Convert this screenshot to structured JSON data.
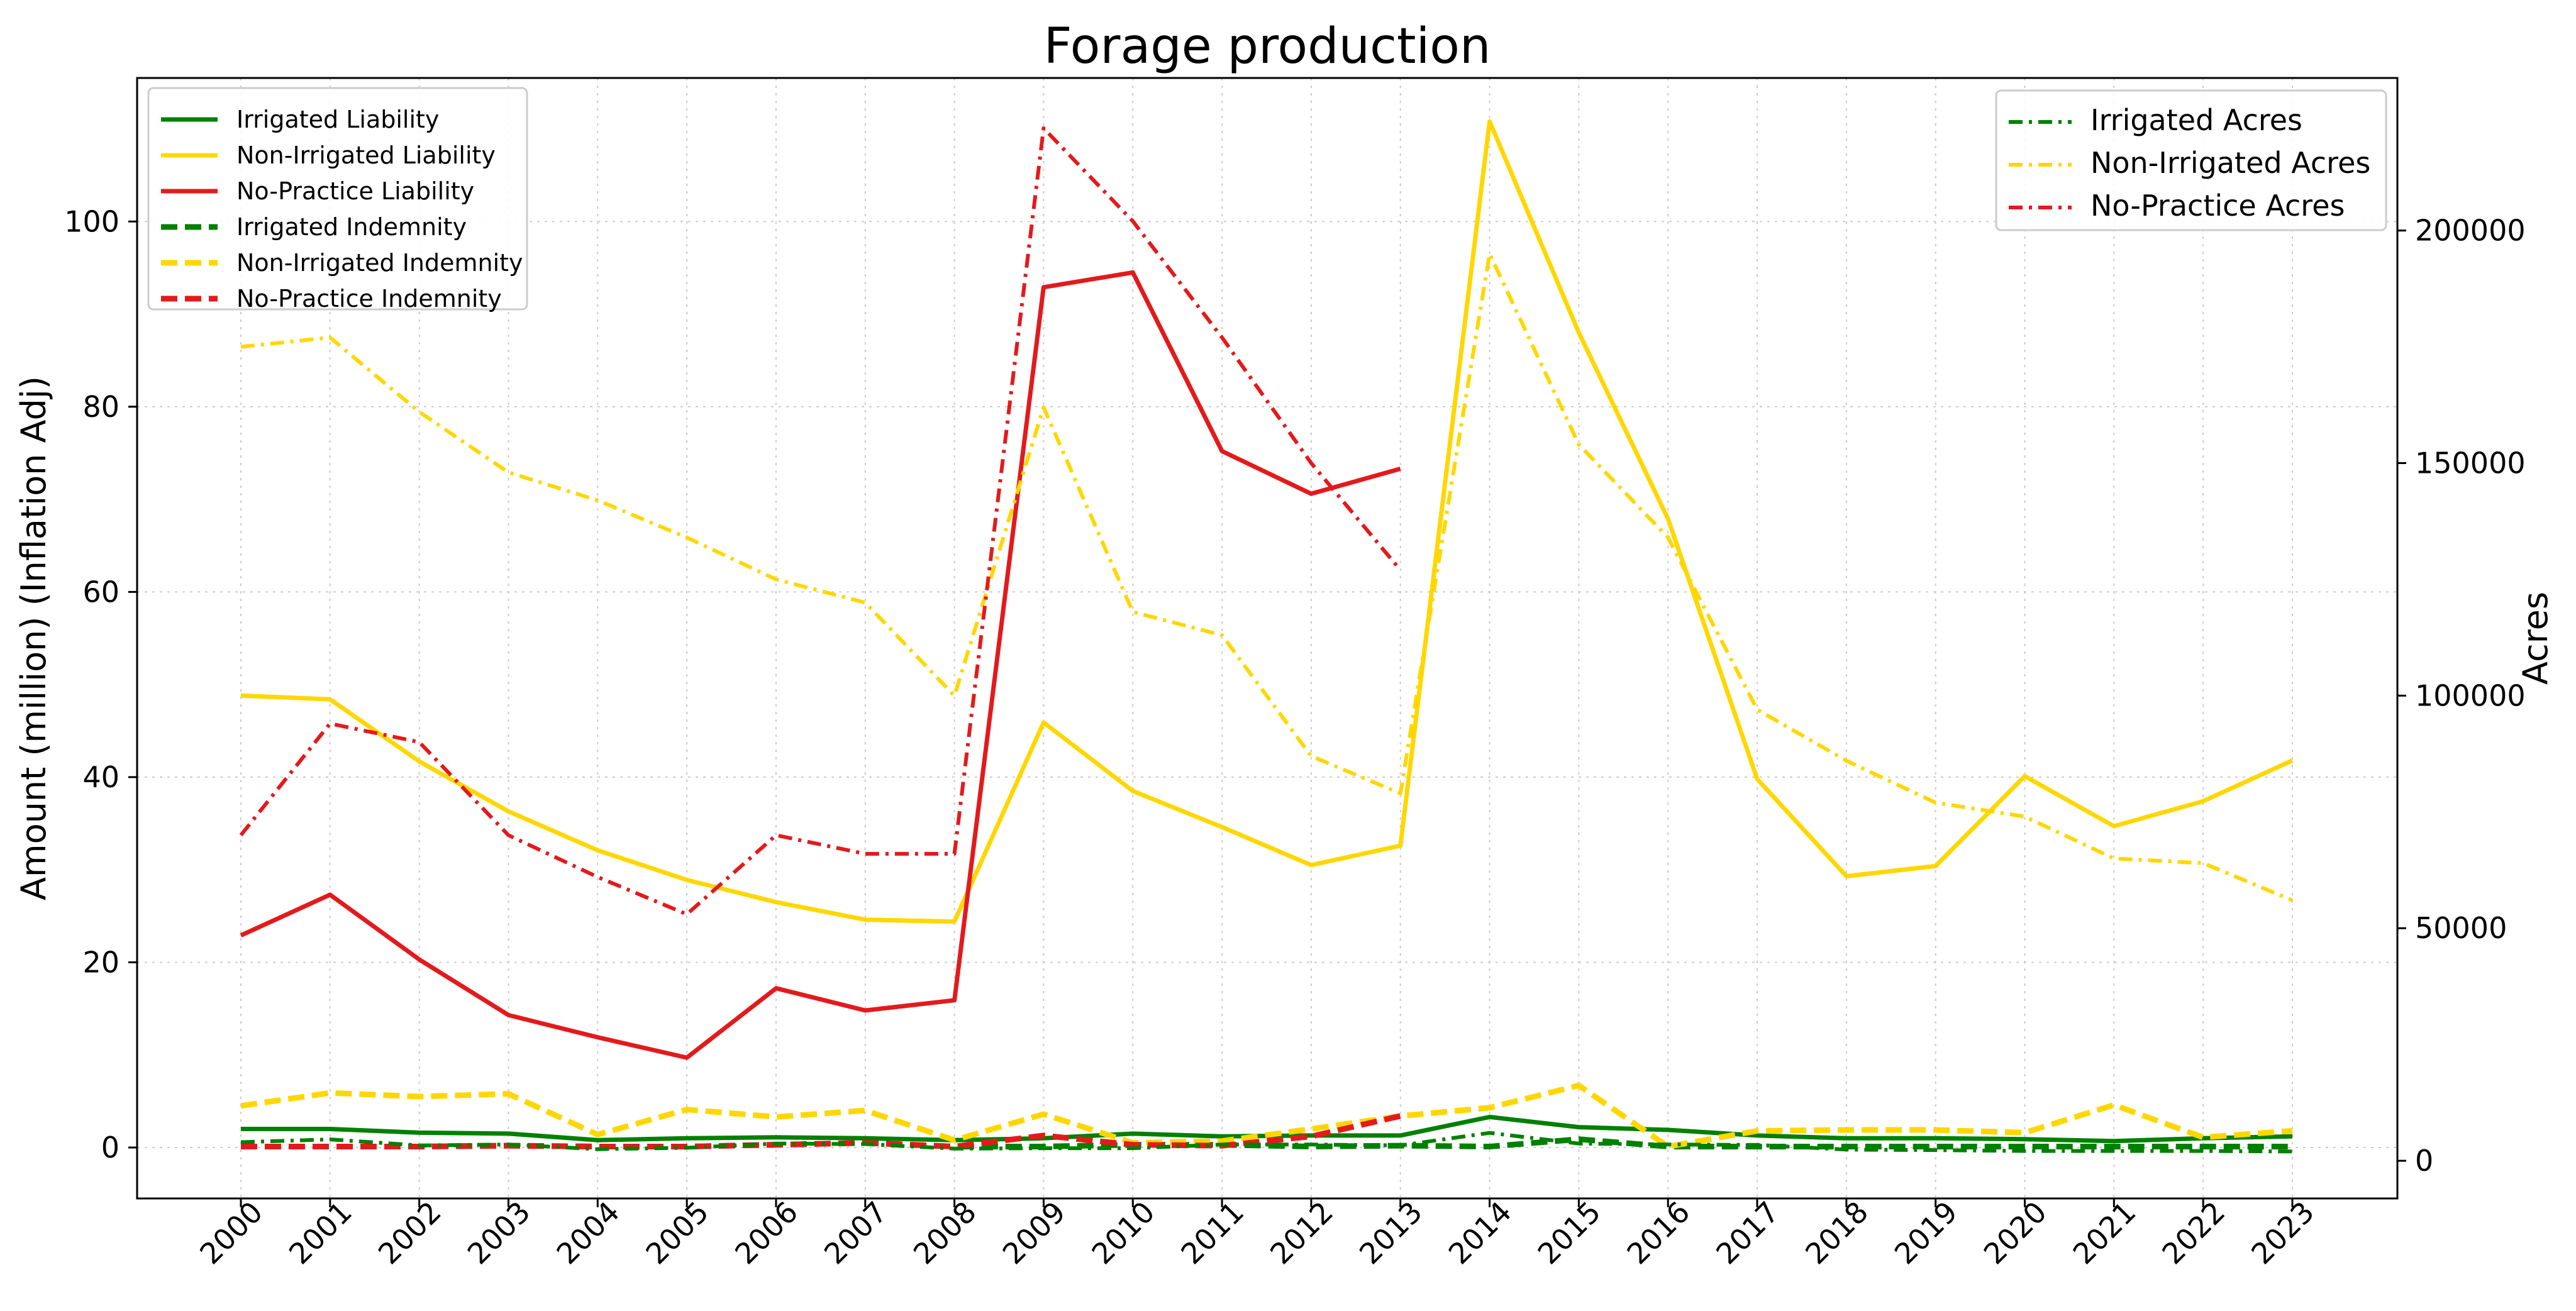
{
  "chart_data": {
    "type": "line",
    "title": "Forage production",
    "xlabel": "",
    "ylabel": "Amount (million) (Inflation Adj)",
    "y2label": "Acres",
    "categories": [
      "2000",
      "2001",
      "2002",
      "2003",
      "2004",
      "2005",
      "2006",
      "2007",
      "2008",
      "2009",
      "2010",
      "2011",
      "2012",
      "2013",
      "2014",
      "2015",
      "2016",
      "2017",
      "2018",
      "2019",
      "2020",
      "2021",
      "2022",
      "2023"
    ],
    "ylim": [
      -5.5,
      115.5
    ],
    "y2lim": [
      -8100,
      232800
    ],
    "yticks": [
      0,
      20,
      40,
      60,
      80,
      100
    ],
    "y2ticks": [
      0,
      50000,
      100000,
      150000,
      200000
    ],
    "grid": true,
    "legend_left_placement": "top-left",
    "legend_right_placement": "top-right",
    "series": [
      {
        "name": "Irrigated Liability",
        "axis": "left",
        "style": "solid",
        "color": "#008000",
        "values": [
          2.0,
          2.0,
          1.6,
          1.5,
          0.8,
          1.0,
          1.1,
          1.0,
          0.8,
          1.0,
          1.5,
          1.2,
          1.3,
          1.3,
          3.3,
          2.2,
          1.9,
          1.3,
          1.0,
          1.0,
          0.9,
          0.7,
          1.0,
          1.2
        ]
      },
      {
        "name": "Non-Irrigated Liability",
        "axis": "left",
        "style": "solid",
        "color": "#FFD700",
        "values": [
          48.8,
          48.4,
          41.7,
          36.3,
          32.1,
          28.9,
          26.5,
          24.6,
          24.4,
          45.9,
          38.5,
          34.6,
          30.5,
          32.6,
          110.8,
          88.0,
          67.9,
          39.8,
          29.3,
          30.4,
          40.1,
          34.7,
          37.4,
          41.8
        ]
      },
      {
        "name": "No-Practice Liability",
        "axis": "left",
        "style": "solid",
        "color": "#E31A1C",
        "values": [
          22.9,
          27.3,
          20.3,
          14.3,
          11.9,
          9.7,
          17.2,
          14.8,
          15.9,
          92.9,
          94.5,
          75.2,
          70.6,
          73.3,
          null,
          null,
          null,
          null,
          null,
          null,
          null,
          null,
          null,
          null
        ]
      },
      {
        "name": "Irrigated Indemnity",
        "axis": "left",
        "style": "dashed",
        "color": "#008000",
        "values": [
          0.1,
          0.1,
          0.1,
          0.2,
          0.1,
          0.1,
          0.3,
          0.5,
          0.1,
          0.1,
          0.3,
          0.3,
          0.1,
          0.2,
          0.1,
          0.9,
          0.1,
          0.1,
          0.1,
          0.1,
          0.1,
          0.1,
          0.1,
          0.1
        ]
      },
      {
        "name": "Non-Irrigated Indemnity",
        "axis": "left",
        "style": "dashed",
        "color": "#FFD700",
        "values": [
          4.5,
          5.9,
          5.5,
          5.8,
          1.4,
          4.1,
          3.3,
          4.0,
          0.8,
          3.6,
          0.5,
          0.7,
          2.0,
          3.4,
          4.3,
          6.7,
          0.1,
          1.8,
          1.9,
          1.9,
          1.6,
          4.6,
          1.1,
          1.8
        ]
      },
      {
        "name": "No-Practice Indemnity",
        "axis": "left",
        "style": "dashed",
        "color": "#E31A1C",
        "values": [
          0.1,
          0.1,
          0.1,
          0.2,
          0.1,
          0.1,
          0.3,
          0.5,
          0.1,
          1.3,
          0.3,
          0.2,
          1.2,
          3.4,
          null,
          null,
          null,
          null,
          null,
          null,
          null,
          null,
          null,
          null
        ]
      },
      {
        "name": "Irrigated Acres",
        "axis": "right",
        "style": "dashdot",
        "color": "#008000",
        "values": [
          4000,
          4600,
          3300,
          3500,
          2500,
          2800,
          3700,
          3600,
          2600,
          2700,
          2700,
          3500,
          3500,
          3300,
          6000,
          3700,
          3500,
          3400,
          2400,
          2300,
          2100,
          2100,
          2100,
          2000
        ]
      },
      {
        "name": "Non-Irrigated Acres",
        "axis": "right",
        "style": "dashdot",
        "color": "#FFD700",
        "values": [
          175000,
          177000,
          161000,
          148000,
          142000,
          134000,
          125000,
          120000,
          100000,
          162000,
          118000,
          113000,
          87000,
          79000,
          195000,
          154000,
          134000,
          97000,
          86000,
          77000,
          74000,
          65000,
          64000,
          56000
        ]
      },
      {
        "name": "No-Practice Acres",
        "axis": "right",
        "style": "dashdot",
        "color": "#E31A1C",
        "values": [
          70000,
          94000,
          90000,
          70000,
          61000,
          53000,
          70000,
          66000,
          66000,
          222000,
          202000,
          177000,
          150000,
          127000,
          null,
          null,
          null,
          null,
          null,
          null,
          null,
          null,
          null,
          null
        ]
      }
    ]
  }
}
